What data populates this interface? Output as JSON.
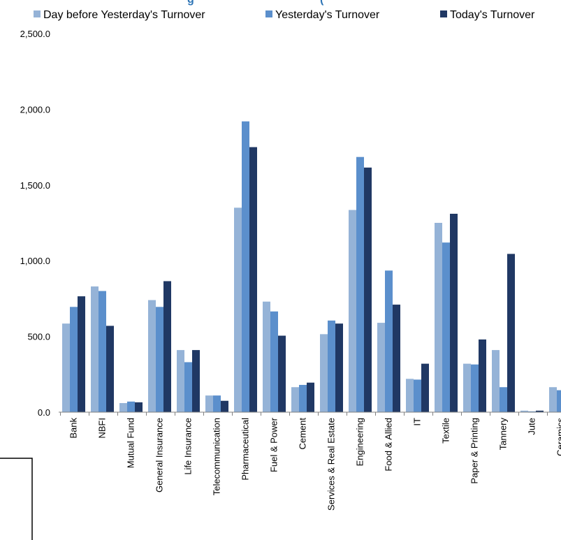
{
  "chart_data": {
    "type": "bar",
    "title": "",
    "xlabel": "",
    "ylabel": "",
    "ylim": [
      0,
      2500
    ],
    "yticks": [
      "0.0",
      "500.0",
      "1,000.0",
      "1,500.0",
      "2,000.0",
      "2,500.0"
    ],
    "grid": false,
    "legend_position": "top",
    "categories": [
      "Bank",
      "NBFI",
      "Mutual Fund",
      "General Insurance",
      "Life Insurance",
      "Telecommunication",
      "Pharmaceutical",
      "Fuel & Power",
      "Cement",
      "Services & Real Estate",
      "Engineering",
      "Food & Allied",
      "IT",
      "Textile",
      "Paper & Printing",
      "Tannery",
      "Jute",
      "Ceramics"
    ],
    "series": [
      {
        "name": "Day before Yesterday's Turnover",
        "color": "#95b3d7",
        "values": [
          585,
          830,
          60,
          740,
          410,
          110,
          1350,
          730,
          165,
          515,
          1335,
          590,
          220,
          1250,
          320,
          410,
          10,
          165
        ]
      },
      {
        "name": "Yesterday's Turnover",
        "color": "#5b8fcc",
        "values": [
          695,
          800,
          70,
          695,
          330,
          110,
          1920,
          665,
          180,
          605,
          1685,
          935,
          215,
          1120,
          315,
          165,
          5,
          145
        ]
      },
      {
        "name": "Today's Turnover",
        "color": "#203864",
        "values": [
          765,
          570,
          65,
          865,
          410,
          75,
          1750,
          505,
          195,
          585,
          1615,
          710,
          320,
          1310,
          480,
          1045,
          10,
          0
        ]
      }
    ]
  }
}
